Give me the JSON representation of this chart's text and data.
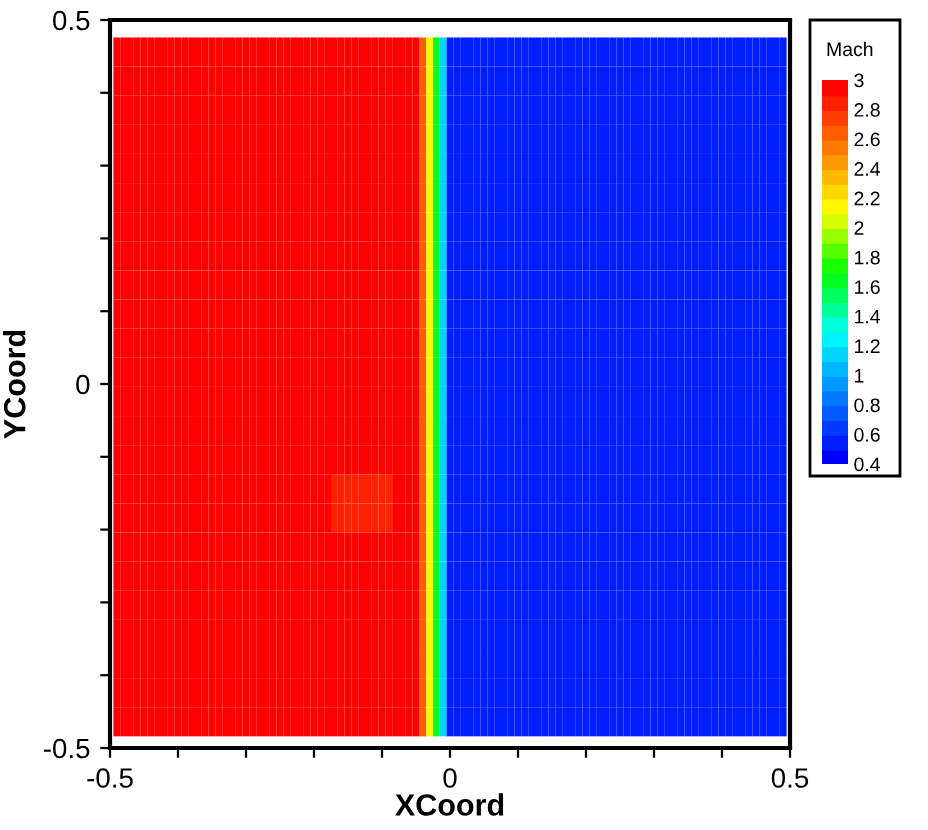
{
  "chart_data": {
    "type": "heatmap",
    "xlabel": "XCoord",
    "ylabel": "YCoord",
    "clabel": "Mach",
    "x": [
      -0.49,
      -0.48,
      -0.47,
      -0.46,
      -0.45,
      -0.44,
      -0.43,
      -0.42,
      -0.41,
      -0.4,
      -0.39,
      -0.38,
      -0.37,
      -0.36,
      -0.35,
      -0.34,
      -0.33,
      -0.32,
      -0.31,
      -0.3,
      -0.29,
      -0.28,
      -0.27,
      -0.26,
      -0.25,
      -0.24,
      -0.23,
      -0.22,
      -0.21,
      -0.2,
      -0.19,
      -0.18,
      -0.17,
      -0.16,
      -0.15,
      -0.14,
      -0.13,
      -0.12,
      -0.11,
      -0.1,
      -0.09,
      -0.08,
      -0.07,
      -0.06,
      -0.05,
      -0.04,
      -0.03,
      -0.02,
      -0.01,
      0,
      0.01,
      0.02,
      0.03,
      0.04,
      0.05,
      0.06,
      0.07,
      0.08,
      0.09,
      0.1,
      0.11,
      0.12,
      0.13,
      0.14,
      0.15,
      0.16,
      0.17,
      0.18,
      0.19,
      0.2,
      0.21,
      0.22,
      0.23,
      0.24,
      0.25,
      0.26,
      0.27,
      0.28,
      0.29,
      0.3,
      0.31,
      0.32,
      0.33,
      0.34,
      0.35,
      0.36,
      0.37,
      0.38,
      0.39,
      0.4,
      0.41,
      0.42,
      0.43,
      0.44,
      0.45,
      0.46,
      0.47,
      0.48,
      0.49
    ],
    "y": [
      0.456,
      0.416,
      0.376,
      0.336,
      0.296,
      0.256,
      0.216,
      0.176,
      0.136,
      0.096,
      0.056,
      0.016,
      -0.024,
      -0.064,
      -0.104,
      -0.144,
      -0.184,
      -0.224,
      -0.264,
      -0.304,
      -0.344,
      -0.384,
      -0.424,
      -0.464
    ],
    "cells": [
      [
        3,
        3,
        3,
        3,
        3,
        3,
        3,
        3,
        3,
        3,
        3,
        3,
        3,
        3,
        3,
        3,
        3,
        3,
        3,
        3,
        3,
        3,
        3,
        3,
        3,
        3,
        3,
        3,
        3,
        3,
        3,
        3,
        3,
        3,
        3,
        3,
        3,
        3,
        3,
        3,
        3,
        3,
        3,
        3,
        3,
        2.6,
        2.1,
        1.6,
        1.1,
        0.5,
        0.5,
        0.5,
        0.5,
        0.5,
        0.5,
        0.5,
        0.5,
        0.5,
        0.5,
        0.5,
        0.5,
        0.5,
        0.5,
        0.5,
        0.5,
        0.5,
        0.5,
        0.5,
        0.5,
        0.5,
        0.5,
        0.5,
        0.5,
        0.5,
        0.5,
        0.5,
        0.5,
        0.5,
        0.5,
        0.5,
        0.5,
        0.5,
        0.5,
        0.5,
        0.5,
        0.5,
        0.5,
        0.5,
        0.5,
        0.5,
        0.5,
        0.5,
        0.5,
        0.5,
        0.5,
        0.5,
        0.5,
        0.5,
        0.5
      ],
      [
        3,
        3,
        3,
        3,
        3,
        3,
        3,
        3,
        3,
        3,
        3,
        3,
        3,
        3,
        3,
        3,
        3,
        3,
        3,
        3,
        3,
        3,
        3,
        3,
        3,
        3,
        3,
        3,
        3,
        3,
        3,
        3,
        3,
        3,
        3,
        3,
        3,
        3,
        3,
        3,
        3,
        3,
        3,
        3,
        3,
        2.6,
        2.1,
        1.6,
        1.1,
        0.5,
        0.5,
        0.5,
        0.5,
        0.5,
        0.5,
        0.5,
        0.5,
        0.5,
        0.5,
        0.5,
        0.5,
        0.5,
        0.5,
        0.5,
        0.5,
        0.5,
        0.5,
        0.5,
        0.5,
        0.5,
        0.5,
        0.5,
        0.5,
        0.5,
        0.5,
        0.5,
        0.5,
        0.5,
        0.5,
        0.5,
        0.5,
        0.5,
        0.5,
        0.5,
        0.5,
        0.5,
        0.5,
        0.5,
        0.5,
        0.5,
        0.5,
        0.5,
        0.5,
        0.5,
        0.5,
        0.5,
        0.5,
        0.5,
        0.5
      ],
      [
        3,
        3,
        3,
        3,
        3,
        3,
        3,
        3,
        3,
        3,
        3,
        3,
        3,
        3,
        3,
        3,
        3,
        3,
        3,
        3,
        3,
        3,
        3,
        3,
        3,
        3,
        3,
        3,
        3,
        3,
        3,
        3,
        3,
        3,
        3,
        3,
        3,
        3,
        3,
        3,
        3,
        3,
        3,
        3,
        3,
        2.6,
        2.1,
        1.6,
        1.1,
        0.5,
        0.5,
        0.5,
        0.5,
        0.5,
        0.5,
        0.5,
        0.5,
        0.5,
        0.5,
        0.5,
        0.5,
        0.5,
        0.5,
        0.5,
        0.5,
        0.5,
        0.5,
        0.5,
        0.5,
        0.5,
        0.5,
        0.5,
        0.5,
        0.5,
        0.5,
        0.5,
        0.5,
        0.5,
        0.5,
        0.5,
        0.5,
        0.5,
        0.5,
        0.5,
        0.5,
        0.5,
        0.5,
        0.5,
        0.5,
        0.5,
        0.5,
        0.5,
        0.5,
        0.5,
        0.5,
        0.5,
        0.5,
        0.5,
        0.5
      ],
      [
        3,
        3,
        3,
        3,
        3,
        3,
        3,
        3,
        3,
        3,
        3,
        3,
        3,
        3,
        3,
        3,
        3,
        3,
        3,
        3,
        3,
        3,
        3,
        3,
        3,
        3,
        3,
        3,
        3,
        3,
        3,
        3,
        3,
        3,
        3,
        3,
        3,
        3,
        3,
        3,
        3,
        3,
        3,
        3,
        3,
        2.6,
        2.1,
        1.6,
        1.1,
        0.5,
        0.5,
        0.5,
        0.5,
        0.5,
        0.5,
        0.5,
        0.5,
        0.5,
        0.5,
        0.5,
        0.5,
        0.5,
        0.5,
        0.5,
        0.5,
        0.5,
        0.5,
        0.5,
        0.5,
        0.5,
        0.5,
        0.5,
        0.5,
        0.5,
        0.5,
        0.5,
        0.5,
        0.5,
        0.5,
        0.5,
        0.5,
        0.5,
        0.5,
        0.5,
        0.5,
        0.5,
        0.5,
        0.5,
        0.5,
        0.5,
        0.5,
        0.5,
        0.5,
        0.5,
        0.5,
        0.5,
        0.5,
        0.5,
        0.5
      ],
      [
        3,
        3,
        3,
        3,
        3,
        3,
        3,
        3,
        3,
        3,
        3,
        3,
        3,
        3,
        3,
        3,
        3,
        3,
        3,
        3,
        3,
        3,
        3,
        3,
        3,
        3,
        3,
        3,
        3,
        3,
        3,
        3,
        3,
        3,
        3,
        3,
        3,
        3,
        3,
        3,
        3,
        3,
        3,
        3,
        3,
        2.6,
        2.1,
        1.6,
        1.1,
        0.5,
        0.5,
        0.5,
        0.5,
        0.5,
        0.5,
        0.5,
        0.5,
        0.5,
        0.5,
        0.5,
        0.5,
        0.5,
        0.5,
        0.5,
        0.5,
        0.5,
        0.5,
        0.5,
        0.5,
        0.5,
        0.5,
        0.5,
        0.5,
        0.5,
        0.5,
        0.5,
        0.5,
        0.5,
        0.5,
        0.5,
        0.5,
        0.5,
        0.5,
        0.5,
        0.5,
        0.5,
        0.5,
        0.5,
        0.5,
        0.5,
        0.5,
        0.5,
        0.5,
        0.5,
        0.5,
        0.5,
        0.5,
        0.5,
        0.5
      ],
      [
        3,
        3,
        3,
        3,
        3,
        3,
        3,
        3,
        3,
        3,
        3,
        3,
        3,
        3,
        3,
        3,
        3,
        3,
        3,
        3,
        3,
        3,
        3,
        3,
        3,
        3,
        3,
        3,
        3,
        3,
        3,
        3,
        3,
        3,
        3,
        3,
        3,
        3,
        3,
        3,
        3,
        3,
        3,
        3,
        3,
        2.6,
        2.1,
        1.6,
        1.1,
        0.5,
        0.5,
        0.5,
        0.5,
        0.5,
        0.5,
        0.5,
        0.5,
        0.5,
        0.5,
        0.5,
        0.5,
        0.5,
        0.5,
        0.5,
        0.5,
        0.5,
        0.5,
        0.5,
        0.5,
        0.5,
        0.5,
        0.5,
        0.5,
        0.5,
        0.5,
        0.5,
        0.5,
        0.5,
        0.5,
        0.5,
        0.5,
        0.5,
        0.5,
        0.5,
        0.5,
        0.5,
        0.5,
        0.5,
        0.5,
        0.5,
        0.5,
        0.5,
        0.5,
        0.5,
        0.5,
        0.5,
        0.5,
        0.5,
        0.5
      ],
      [
        3,
        3,
        3,
        3,
        3,
        3,
        3,
        3,
        3,
        3,
        3,
        3,
        3,
        3,
        3,
        3,
        3,
        3,
        3,
        3,
        3,
        3,
        3,
        3,
        3,
        3,
        3,
        3,
        3,
        3,
        3,
        3,
        3,
        3,
        3,
        3,
        3,
        3,
        3,
        3,
        3,
        3,
        3,
        3,
        3,
        2.6,
        2.1,
        1.6,
        1.1,
        0.5,
        0.5,
        0.5,
        0.5,
        0.5,
        0.5,
        0.5,
        0.5,
        0.5,
        0.5,
        0.5,
        0.5,
        0.5,
        0.5,
        0.5,
        0.5,
        0.5,
        0.5,
        0.5,
        0.5,
        0.5,
        0.5,
        0.5,
        0.5,
        0.5,
        0.5,
        0.5,
        0.5,
        0.5,
        0.5,
        0.5,
        0.5,
        0.5,
        0.5,
        0.5,
        0.5,
        0.5,
        0.5,
        0.5,
        0.5,
        0.5,
        0.5,
        0.5,
        0.5,
        0.5,
        0.5,
        0.5,
        0.5,
        0.5,
        0.5
      ],
      [
        3,
        3,
        3,
        3,
        3,
        3,
        3,
        3,
        3,
        3,
        3,
        3,
        3,
        3,
        3,
        3,
        3,
        3,
        3,
        3,
        3,
        3,
        3,
        3,
        3,
        3,
        3,
        3,
        3,
        3,
        3,
        3,
        3,
        3,
        3,
        3,
        3,
        3,
        3,
        3,
        3,
        3,
        3,
        3,
        3,
        2.6,
        2.1,
        1.6,
        1.1,
        0.5,
        0.5,
        0.5,
        0.5,
        0.5,
        0.5,
        0.5,
        0.5,
        0.5,
        0.5,
        0.5,
        0.5,
        0.5,
        0.5,
        0.5,
        0.5,
        0.5,
        0.5,
        0.5,
        0.5,
        0.5,
        0.5,
        0.5,
        0.5,
        0.5,
        0.5,
        0.5,
        0.5,
        0.5,
        0.5,
        0.5,
        0.5,
        0.5,
        0.5,
        0.5,
        0.5,
        0.5,
        0.5,
        0.5,
        0.5,
        0.5,
        0.5,
        0.5,
        0.5,
        0.5,
        0.5,
        0.5,
        0.5,
        0.5,
        0.5
      ],
      [
        3,
        3,
        3,
        3,
        3,
        3,
        3,
        3,
        3,
        3,
        3,
        3,
        3,
        3,
        3,
        3,
        3,
        3,
        3,
        3,
        3,
        3,
        3,
        3,
        3,
        3,
        3,
        3,
        3,
        3,
        3,
        3,
        3,
        3,
        3,
        3,
        3,
        3,
        3,
        3,
        3,
        3,
        3,
        3,
        3,
        2.6,
        2.1,
        1.6,
        1.1,
        0.5,
        0.5,
        0.5,
        0.5,
        0.5,
        0.5,
        0.5,
        0.5,
        0.5,
        0.5,
        0.5,
        0.5,
        0.5,
        0.5,
        0.5,
        0.5,
        0.5,
        0.5,
        0.5,
        0.5,
        0.5,
        0.5,
        0.5,
        0.5,
        0.5,
        0.5,
        0.5,
        0.5,
        0.5,
        0.5,
        0.5,
        0.5,
        0.5,
        0.5,
        0.5,
        0.5,
        0.5,
        0.5,
        0.5,
        0.5,
        0.5,
        0.5,
        0.5,
        0.5,
        0.5,
        0.5,
        0.5,
        0.5,
        0.5,
        0.5
      ],
      [
        3,
        3,
        3,
        3,
        3,
        3,
        3,
        3,
        3,
        3,
        3,
        3,
        3,
        3,
        3,
        3,
        3,
        3,
        3,
        3,
        3,
        3,
        3,
        3,
        3,
        3,
        3,
        3,
        3,
        3,
        3,
        3,
        3,
        3,
        3,
        3,
        3,
        3,
        3,
        3,
        3,
        3,
        3,
        3,
        3,
        2.6,
        2.1,
        1.6,
        1.1,
        0.5,
        0.5,
        0.5,
        0.5,
        0.5,
        0.5,
        0.5,
        0.5,
        0.5,
        0.5,
        0.5,
        0.5,
        0.5,
        0.5,
        0.5,
        0.5,
        0.5,
        0.5,
        0.5,
        0.5,
        0.5,
        0.5,
        0.5,
        0.5,
        0.5,
        0.5,
        0.5,
        0.5,
        0.5,
        0.5,
        0.5,
        0.5,
        0.5,
        0.5,
        0.5,
        0.5,
        0.5,
        0.5,
        0.5,
        0.5,
        0.5,
        0.5,
        0.5,
        0.5,
        0.5,
        0.5,
        0.5,
        0.5,
        0.5,
        0.5
      ],
      [
        3,
        3,
        3,
        3,
        3,
        3,
        3,
        3,
        3,
        3,
        3,
        3,
        3,
        3,
        3,
        3,
        3,
        3,
        3,
        3,
        3,
        3,
        3,
        3,
        3,
        3,
        3,
        3,
        3,
        3,
        3,
        3,
        3,
        3,
        3,
        3,
        3,
        3,
        3,
        3,
        3,
        3,
        3,
        3,
        3,
        2.6,
        2.1,
        1.6,
        1.1,
        0.5,
        0.5,
        0.5,
        0.5,
        0.5,
        0.5,
        0.5,
        0.5,
        0.5,
        0.5,
        0.5,
        0.5,
        0.5,
        0.5,
        0.5,
        0.5,
        0.5,
        0.5,
        0.5,
        0.5,
        0.5,
        0.5,
        0.5,
        0.5,
        0.5,
        0.5,
        0.5,
        0.5,
        0.5,
        0.5,
        0.5,
        0.5,
        0.5,
        0.5,
        0.5,
        0.5,
        0.5,
        0.5,
        0.5,
        0.5,
        0.5,
        0.5,
        0.5,
        0.5,
        0.5,
        0.5,
        0.5,
        0.5,
        0.5,
        0.5
      ],
      [
        3,
        3,
        3,
        3,
        3,
        3,
        3,
        3,
        3,
        3,
        3,
        3,
        3,
        3,
        3,
        3,
        3,
        3,
        3,
        3,
        3,
        3,
        3,
        3,
        3,
        3,
        3,
        3,
        3,
        3,
        3,
        3,
        3,
        3,
        3,
        3,
        3,
        3,
        3,
        3,
        3,
        3,
        3,
        3,
        3,
        2.6,
        2.1,
        1.6,
        1.1,
        0.5,
        0.5,
        0.5,
        0.5,
        0.5,
        0.5,
        0.5,
        0.5,
        0.5,
        0.5,
        0.5,
        0.5,
        0.5,
        0.5,
        0.5,
        0.5,
        0.5,
        0.5,
        0.5,
        0.5,
        0.5,
        0.5,
        0.5,
        0.5,
        0.5,
        0.5,
        0.5,
        0.5,
        0.5,
        0.5,
        0.5,
        0.5,
        0.5,
        0.5,
        0.5,
        0.5,
        0.5,
        0.5,
        0.5,
        0.5,
        0.5,
        0.5,
        0.5,
        0.5,
        0.5,
        0.5,
        0.5,
        0.5,
        0.5,
        0.5
      ],
      [
        3,
        3,
        3,
        3,
        3,
        3,
        3,
        3,
        3,
        3,
        3,
        3,
        3,
        3,
        3,
        3,
        3,
        3,
        3,
        3,
        3,
        3,
        3,
        3,
        3,
        3,
        3,
        3,
        3,
        3,
        3,
        3,
        3,
        3,
        3,
        3,
        3,
        3,
        3,
        3,
        3,
        3,
        3,
        3,
        3,
        2.6,
        2.1,
        1.6,
        1.1,
        0.5,
        0.5,
        0.5,
        0.5,
        0.5,
        0.5,
        0.5,
        0.5,
        0.5,
        0.5,
        0.5,
        0.5,
        0.5,
        0.5,
        0.5,
        0.5,
        0.5,
        0.5,
        0.5,
        0.5,
        0.5,
        0.5,
        0.5,
        0.5,
        0.5,
        0.5,
        0.5,
        0.5,
        0.5,
        0.5,
        0.5,
        0.5,
        0.5,
        0.5,
        0.5,
        0.5,
        0.5,
        0.5,
        0.5,
        0.5,
        0.5,
        0.5,
        0.5,
        0.5,
        0.5,
        0.5,
        0.5,
        0.5,
        0.5,
        0.5
      ],
      [
        3,
        3,
        3,
        3,
        3,
        3,
        3,
        3,
        3,
        3,
        3,
        3,
        3,
        3,
        3,
        3,
        3,
        3,
        3,
        3,
        3,
        3,
        3,
        3,
        3,
        3,
        3,
        3,
        3,
        3,
        3,
        3,
        3,
        3,
        3,
        3,
        3,
        3,
        3,
        3,
        3,
        3,
        3,
        3,
        3,
        2.6,
        2.1,
        1.6,
        1.1,
        0.5,
        0.5,
        0.5,
        0.5,
        0.5,
        0.5,
        0.5,
        0.5,
        0.5,
        0.5,
        0.5,
        0.5,
        0.5,
        0.5,
        0.5,
        0.5,
        0.5,
        0.5,
        0.5,
        0.5,
        0.5,
        0.5,
        0.5,
        0.5,
        0.5,
        0.5,
        0.5,
        0.5,
        0.5,
        0.5,
        0.5,
        0.5,
        0.5,
        0.5,
        0.5,
        0.5,
        0.5,
        0.5,
        0.5,
        0.5,
        0.5,
        0.5,
        0.5,
        0.5,
        0.5,
        0.5,
        0.5,
        0.5,
        0.5,
        0.5
      ],
      [
        3,
        3,
        3,
        3,
        3,
        3,
        3,
        3,
        3,
        3,
        3,
        3,
        3,
        3,
        3,
        3,
        3,
        3,
        3,
        3,
        3,
        3,
        3,
        3,
        3,
        3,
        3,
        3,
        3,
        3,
        3,
        3,
        3,
        3,
        3,
        3,
        3,
        3,
        3,
        3,
        3,
        3,
        3,
        3,
        3,
        2.6,
        2.1,
        1.6,
        1.1,
        0.5,
        0.5,
        0.5,
        0.5,
        0.5,
        0.5,
        0.5,
        0.5,
        0.5,
        0.5,
        0.5,
        0.5,
        0.5,
        0.5,
        0.5,
        0.5,
        0.5,
        0.5,
        0.5,
        0.5,
        0.5,
        0.5,
        0.5,
        0.5,
        0.5,
        0.5,
        0.5,
        0.5,
        0.5,
        0.5,
        0.5,
        0.5,
        0.5,
        0.5,
        0.5,
        0.5,
        0.5,
        0.5,
        0.5,
        0.5,
        0.5,
        0.5,
        0.5,
        0.5,
        0.5,
        0.5,
        0.5,
        0.5,
        0.5,
        0.5
      ],
      [
        3,
        3,
        3,
        3,
        3,
        3,
        3,
        3,
        3,
        3,
        3,
        3,
        3,
        3,
        3,
        3,
        3,
        3,
        3,
        3,
        3,
        3,
        3,
        3,
        3,
        3,
        3,
        3,
        3,
        3,
        3,
        3,
        2.85,
        2.85,
        2.85,
        2.85,
        2.85,
        2.85,
        2.85,
        2.85,
        2.85,
        3,
        3,
        3,
        3,
        2.6,
        2.1,
        1.6,
        1.1,
        0.5,
        0.5,
        0.5,
        0.5,
        0.5,
        0.5,
        0.5,
        0.5,
        0.5,
        0.5,
        0.5,
        0.5,
        0.5,
        0.5,
        0.5,
        0.5,
        0.5,
        0.5,
        0.5,
        0.5,
        0.5,
        0.5,
        0.5,
        0.5,
        0.5,
        0.5,
        0.5,
        0.5,
        0.5,
        0.5,
        0.5,
        0.5,
        0.5,
        0.5,
        0.5,
        0.5,
        0.5,
        0.5,
        0.5,
        0.5,
        0.5,
        0.5,
        0.5,
        0.5,
        0.5,
        0.5,
        0.5,
        0.5,
        0.5,
        0.5
      ],
      [
        3,
        3,
        3,
        3,
        3,
        3,
        3,
        3,
        3,
        3,
        3,
        3,
        3,
        3,
        3,
        3,
        3,
        3,
        3,
        3,
        3,
        3,
        3,
        3,
        3,
        3,
        3,
        3,
        3,
        3,
        3,
        3,
        2.85,
        2.85,
        2.85,
        2.85,
        2.85,
        2.85,
        2.85,
        2.85,
        2.85,
        3,
        3,
        3,
        3,
        2.6,
        2.1,
        1.6,
        1.1,
        0.5,
        0.5,
        0.5,
        0.5,
        0.5,
        0.5,
        0.5,
        0.5,
        0.5,
        0.5,
        0.5,
        0.5,
        0.5,
        0.5,
        0.5,
        0.5,
        0.5,
        0.5,
        0.5,
        0.5,
        0.5,
        0.5,
        0.5,
        0.5,
        0.5,
        0.5,
        0.5,
        0.5,
        0.5,
        0.5,
        0.5,
        0.5,
        0.5,
        0.5,
        0.5,
        0.5,
        0.5,
        0.5,
        0.5,
        0.5,
        0.5,
        0.5,
        0.5,
        0.5,
        0.5,
        0.5,
        0.5,
        0.5,
        0.5,
        0.5
      ],
      [
        3,
        3,
        3,
        3,
        3,
        3,
        3,
        3,
        3,
        3,
        3,
        3,
        3,
        3,
        3,
        3,
        3,
        3,
        3,
        3,
        3,
        3,
        3,
        3,
        3,
        3,
        3,
        3,
        3,
        3,
        3,
        3,
        3,
        3,
        3,
        3,
        3,
        3,
        3,
        3,
        3,
        3,
        3,
        3,
        3,
        2.6,
        2.1,
        1.6,
        1.1,
        0.5,
        0.5,
        0.5,
        0.5,
        0.5,
        0.5,
        0.5,
        0.5,
        0.5,
        0.5,
        0.5,
        0.5,
        0.5,
        0.5,
        0.5,
        0.5,
        0.5,
        0.5,
        0.5,
        0.5,
        0.5,
        0.5,
        0.5,
        0.5,
        0.5,
        0.5,
        0.5,
        0.5,
        0.5,
        0.5,
        0.5,
        0.5,
        0.5,
        0.5,
        0.5,
        0.5,
        0.5,
        0.5,
        0.5,
        0.5,
        0.5,
        0.5,
        0.5,
        0.5,
        0.5,
        0.5,
        0.5,
        0.5,
        0.5,
        0.5
      ],
      [
        3,
        3,
        3,
        3,
        3,
        3,
        3,
        3,
        3,
        3,
        3,
        3,
        3,
        3,
        3,
        3,
        3,
        3,
        3,
        3,
        3,
        3,
        3,
        3,
        3,
        3,
        3,
        3,
        3,
        3,
        3,
        3,
        3,
        3,
        3,
        3,
        3,
        3,
        3,
        3,
        3,
        3,
        3,
        3,
        3,
        2.6,
        2.1,
        1.6,
        1.1,
        0.5,
        0.5,
        0.5,
        0.5,
        0.5,
        0.5,
        0.5,
        0.5,
        0.5,
        0.5,
        0.5,
        0.5,
        0.5,
        0.5,
        0.5,
        0.5,
        0.5,
        0.5,
        0.5,
        0.5,
        0.5,
        0.5,
        0.5,
        0.5,
        0.5,
        0.5,
        0.5,
        0.5,
        0.5,
        0.5,
        0.5,
        0.5,
        0.5,
        0.5,
        0.5,
        0.5,
        0.5,
        0.5,
        0.5,
        0.5,
        0.5,
        0.5,
        0.5,
        0.5,
        0.5,
        0.5,
        0.5,
        0.5,
        0.5,
        0.5
      ],
      [
        3,
        3,
        3,
        3,
        3,
        3,
        3,
        3,
        3,
        3,
        3,
        3,
        3,
        3,
        3,
        3,
        3,
        3,
        3,
        3,
        3,
        3,
        3,
        3,
        3,
        3,
        3,
        3,
        3,
        3,
        3,
        3,
        3,
        3,
        3,
        3,
        3,
        3,
        3,
        3,
        3,
        3,
        3,
        3,
        3,
        2.6,
        2.1,
        1.6,
        1.1,
        0.5,
        0.5,
        0.5,
        0.5,
        0.5,
        0.5,
        0.5,
        0.5,
        0.5,
        0.5,
        0.5,
        0.5,
        0.5,
        0.5,
        0.5,
        0.5,
        0.5,
        0.5,
        0.5,
        0.5,
        0.5,
        0.5,
        0.5,
        0.5,
        0.5,
        0.5,
        0.5,
        0.5,
        0.5,
        0.5,
        0.5,
        0.5,
        0.5,
        0.5,
        0.5,
        0.5,
        0.5,
        0.5,
        0.5,
        0.5,
        0.5,
        0.5,
        0.5,
        0.5,
        0.5,
        0.5,
        0.5,
        0.5,
        0.5,
        0.5
      ],
      [
        3,
        3,
        3,
        3,
        3,
        3,
        3,
        3,
        3,
        3,
        3,
        3,
        3,
        3,
        3,
        3,
        3,
        3,
        3,
        3,
        3,
        3,
        3,
        3,
        3,
        3,
        3,
        3,
        3,
        3,
        3,
        3,
        3,
        3,
        3,
        3,
        3,
        3,
        3,
        3,
        3,
        3,
        3,
        3,
        3,
        2.6,
        2.1,
        1.6,
        1.1,
        0.5,
        0.5,
        0.5,
        0.5,
        0.5,
        0.5,
        0.5,
        0.5,
        0.5,
        0.5,
        0.5,
        0.5,
        0.5,
        0.5,
        0.5,
        0.5,
        0.5,
        0.5,
        0.5,
        0.5,
        0.5,
        0.5,
        0.5,
        0.5,
        0.5,
        0.5,
        0.5,
        0.5,
        0.5,
        0.5,
        0.5,
        0.5,
        0.5,
        0.5,
        0.5,
        0.5,
        0.5,
        0.5,
        0.5,
        0.5,
        0.5,
        0.5,
        0.5,
        0.5,
        0.5,
        0.5,
        0.5,
        0.5,
        0.5,
        0.5
      ],
      [
        3,
        3,
        3,
        3,
        3,
        3,
        3,
        3,
        3,
        3,
        3,
        3,
        3,
        3,
        3,
        3,
        3,
        3,
        3,
        3,
        3,
        3,
        3,
        3,
        3,
        3,
        3,
        3,
        3,
        3,
        3,
        3,
        3,
        3,
        3,
        3,
        3,
        3,
        3,
        3,
        3,
        3,
        3,
        3,
        3,
        2.6,
        2.1,
        1.6,
        1.1,
        0.5,
        0.5,
        0.5,
        0.5,
        0.5,
        0.5,
        0.5,
        0.5,
        0.5,
        0.5,
        0.5,
        0.5,
        0.5,
        0.5,
        0.5,
        0.5,
        0.5,
        0.5,
        0.5,
        0.5,
        0.5,
        0.5,
        0.5,
        0.5,
        0.5,
        0.5,
        0.5,
        0.5,
        0.5,
        0.5,
        0.5,
        0.5,
        0.5,
        0.5,
        0.5,
        0.5,
        0.5,
        0.5,
        0.5,
        0.5,
        0.5,
        0.5,
        0.5,
        0.5,
        0.5,
        0.5,
        0.5,
        0.5,
        0.5,
        0.5
      ],
      [
        3,
        3,
        3,
        3,
        3,
        3,
        3,
        3,
        3,
        3,
        3,
        3,
        3,
        3,
        3,
        3,
        3,
        3,
        3,
        3,
        3,
        3,
        3,
        3,
        3,
        3,
        3,
        3,
        3,
        3,
        3,
        3,
        3,
        3,
        3,
        3,
        3,
        3,
        3,
        3,
        3,
        3,
        3,
        3,
        3,
        2.6,
        2.1,
        1.6,
        1.1,
        0.5,
        0.5,
        0.5,
        0.5,
        0.5,
        0.5,
        0.5,
        0.5,
        0.5,
        0.5,
        0.5,
        0.5,
        0.5,
        0.5,
        0.5,
        0.5,
        0.5,
        0.5,
        0.5,
        0.5,
        0.5,
        0.5,
        0.5,
        0.5,
        0.5,
        0.5,
        0.5,
        0.5,
        0.5,
        0.5,
        0.5,
        0.5,
        0.5,
        0.5,
        0.5,
        0.5,
        0.5,
        0.5,
        0.5,
        0.5,
        0.5,
        0.5,
        0.5,
        0.5,
        0.5,
        0.5,
        0.5,
        0.5,
        0.5,
        0.5
      ],
      [
        3,
        3,
        3,
        3,
        3,
        3,
        3,
        3,
        3,
        3,
        3,
        3,
        3,
        3,
        3,
        3,
        3,
        3,
        3,
        3,
        3,
        3,
        3,
        3,
        3,
        3,
        3,
        3,
        3,
        3,
        3,
        3,
        3,
        3,
        3,
        3,
        3,
        3,
        3,
        3,
        3,
        3,
        3,
        3,
        3,
        2.6,
        2.1,
        1.6,
        1.1,
        0.5,
        0.5,
        0.5,
        0.5,
        0.5,
        0.5,
        0.5,
        0.5,
        0.5,
        0.5,
        0.5,
        0.5,
        0.5,
        0.5,
        0.5,
        0.5,
        0.5,
        0.5,
        0.5,
        0.5,
        0.5,
        0.5,
        0.5,
        0.5,
        0.5,
        0.5,
        0.5,
        0.5,
        0.5,
        0.5,
        0.5,
        0.5,
        0.5,
        0.5,
        0.5,
        0.5,
        0.5,
        0.5,
        0.5,
        0.5,
        0.5,
        0.5,
        0.5,
        0.5,
        0.5,
        0.5,
        0.5,
        0.5,
        0.5,
        0.5
      ]
    ],
    "clim": [
      0.4,
      3
    ],
    "cticks": [
      0.4,
      0.6,
      0.8,
      1,
      1.2,
      1.4,
      1.6,
      1.8,
      2,
      2.2,
      2.4,
      2.6,
      2.8,
      3
    ],
    "xlim": [
      -0.5,
      0.5
    ],
    "ylim": [
      -0.5,
      0.5
    ],
    "xticks": [
      -0.5,
      {
        "value": -0.4,
        "label": null
      },
      {
        "value": -0.3,
        "label": null
      },
      {
        "value": -0.2,
        "label": null
      },
      {
        "value": -0.1,
        "label": null
      },
      0,
      {
        "value": 0.1,
        "label": null
      },
      {
        "value": 0.2,
        "label": null
      },
      {
        "value": 0.3,
        "label": null
      },
      {
        "value": 0.4,
        "label": null
      },
      0.5
    ],
    "yticks": [
      -0.5,
      {
        "value": -0.4,
        "label": null
      },
      {
        "value": -0.3,
        "label": null
      },
      {
        "value": -0.2,
        "label": null
      },
      {
        "value": -0.1,
        "label": null
      },
      0,
      {
        "value": 0.1,
        "label": null
      },
      {
        "value": 0.2,
        "label": null
      },
      {
        "value": 0.3,
        "label": null
      },
      {
        "value": 0.4,
        "label": null
      },
      0.5
    ],
    "grid": false
  }
}
